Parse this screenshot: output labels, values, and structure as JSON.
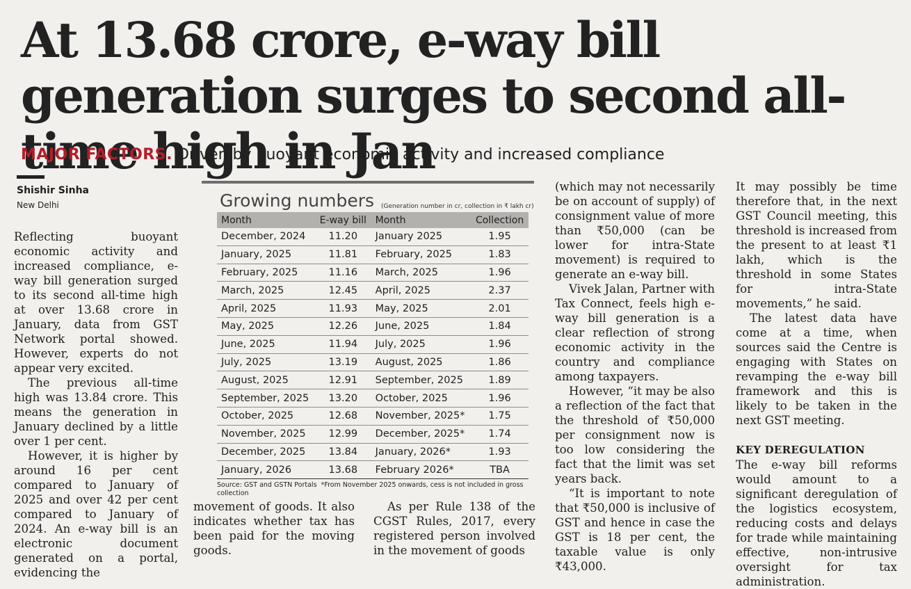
{
  "headline": "At 13.68 crore, e-way bill generation surges to second all-time high in Jan",
  "subhead": {
    "kicker": "MAJOR FACTORS.",
    "text": "Driven by buoyant economic activity and increased compliance"
  },
  "byline": {
    "author": "Shishir Sinha",
    "place": "New Delhi"
  },
  "column1": [
    "Reflecting buoyant economic activity and increased compliance, e-way bill generation surged to its second all-time high at over 13.68 crore in January, data from GST Network portal showed. However, experts do not appear very excited.",
    "The previous all-time high was 13.84 crore. This means the generation in January declined by a little over 1 per cent.",
    "However, it is higher by around 16 per cent compared to January of 2025 and over 42 per cent compared to January of 2024. An e-way bill is an electronic document generated on a portal, evidencing the"
  ],
  "column2a": "movement of goods. It also indicates whether tax has been paid for the moving goods.",
  "column2b": "As per Rule 138 of the CGST Rules, 2017, every registered person involved in the movement of goods",
  "column3": [
    "(which may not necessarily be on account of supply) of consignment value of more than ₹50,000 (can be lower for intra-State movement) is required to generate an e-way bill.",
    "Vivek Jalan, Partner with Tax Connect, feels high e-way bill generation is a clear reflection of strong economic activity in the country and compliance among taxpayers.",
    "However, “it may be also a reflection of the fact that the threshold of ₹50,000 per consignment now is too low considering the fact that the limit was set years back.",
    "“It is important to note that ₹50,000 is inclusive of GST and hence in case the GST is 18 per cent, the taxable value is only ₹43,000."
  ],
  "column4": {
    "p1": "It may possibly be time therefore that, in the next GST Council meeting, this threshold is increased from the present to at least ₹1 lakh, which is the threshold in some States for intra-State movements,” he said.",
    "p2": "The latest data have come at a time, when sources said the Centre is engaging with States on revamping the e-way bill framework and this is likely to be taken in the next GST meeting.",
    "section": "KEY DEREGULATION",
    "p3": "The e-way bill reforms would amount to a significant deregulation of the logistics ecosystem, reducing costs and delays for trade while maintaining effective, non-intrusive oversight for tax administration."
  },
  "table": {
    "title": "Growing numbers",
    "note": "(Generation number in cr, collection in ₹ lakh cr)",
    "headers": [
      "Month",
      "E-way bill",
      "Month",
      "Collection"
    ],
    "rows": [
      [
        "December, 2024",
        "11.20",
        "January 2025",
        "1.95"
      ],
      [
        "January, 2025",
        "11.81",
        "February, 2025",
        "1.83"
      ],
      [
        "February, 2025",
        "11.16",
        "March, 2025",
        "1.96"
      ],
      [
        "March, 2025",
        "12.45",
        "April, 2025",
        "2.37"
      ],
      [
        "April, 2025",
        "11.93",
        "May, 2025",
        "2.01"
      ],
      [
        "May, 2025",
        "12.26",
        "June, 2025",
        "1.84"
      ],
      [
        "June, 2025",
        "11.94",
        "July, 2025",
        "1.96"
      ],
      [
        "July, 2025",
        "13.19",
        "August, 2025",
        "1.86"
      ],
      [
        "August, 2025",
        "12.91",
        "September, 2025",
        "1.89"
      ],
      [
        "September, 2025",
        "13.20",
        "October, 2025",
        "1.96"
      ],
      [
        "October, 2025",
        "12.68",
        "November, 2025*",
        "1.75"
      ],
      [
        "November, 2025",
        "12.99",
        "December, 2025*",
        "1.74"
      ],
      [
        "December, 2025",
        "13.84",
        "January, 2026*",
        "1.93"
      ],
      [
        "January, 2026",
        "13.68",
        "February 2026*",
        "TBA"
      ]
    ],
    "source": "Source: GST and GSTN Portals",
    "footnote": "*From November 2025 onwards, cess is not included in gross collection"
  }
}
